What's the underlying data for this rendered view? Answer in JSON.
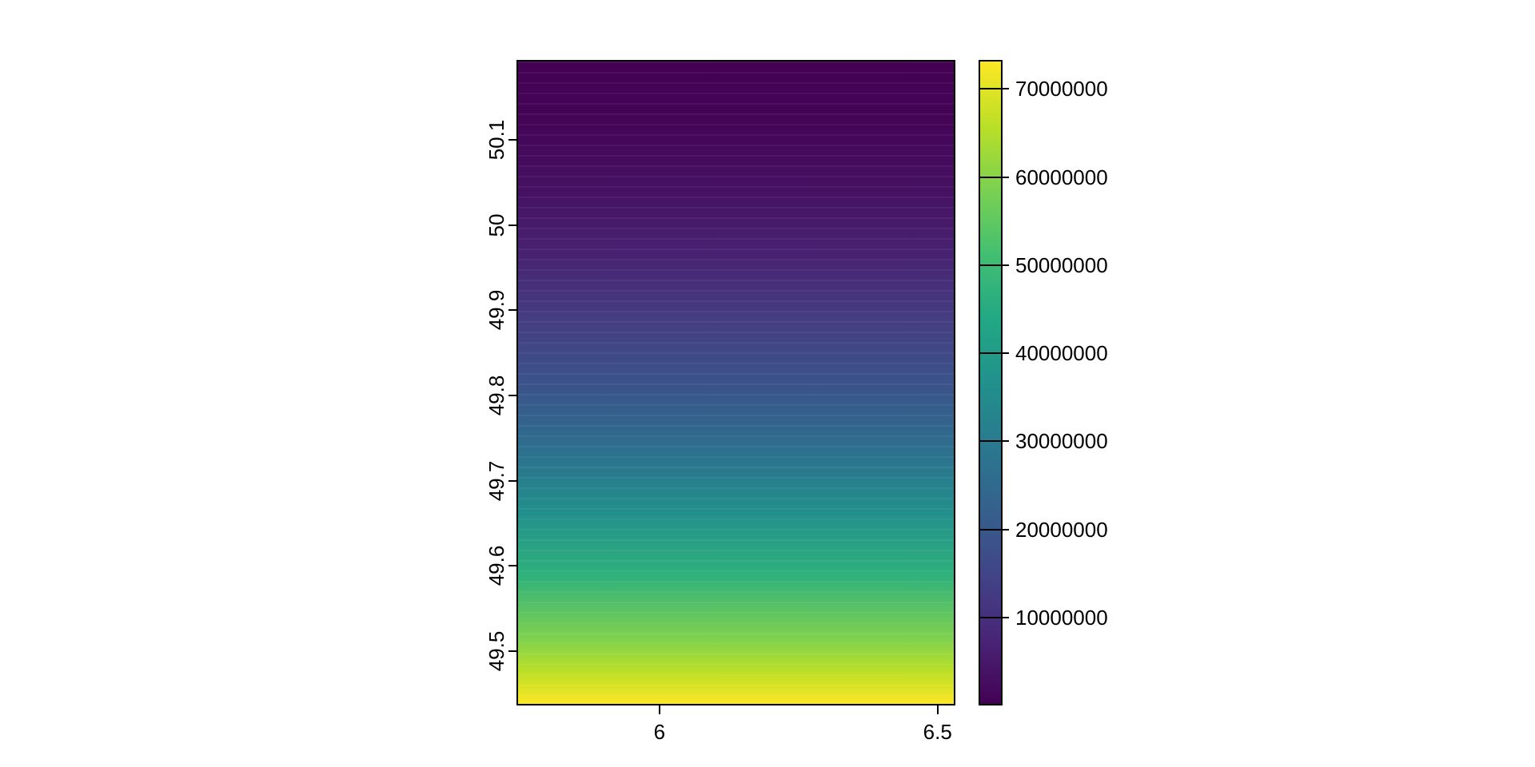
{
  "figure": {
    "background": "#FFFFFF",
    "text_color": "#000000",
    "border_color": "#000000"
  },
  "chart_data": {
    "type": "heatmap",
    "title": "",
    "xlabel": "",
    "ylabel": "",
    "grid": false,
    "boxed": true,
    "x_axis": {
      "range": [
        5.743,
        6.532
      ],
      "tick_values": [
        6,
        6.5
      ],
      "tick_labels": [
        "6",
        "6.5"
      ]
    },
    "y_axis": {
      "range": [
        49.436,
        50.194
      ],
      "tick_values": [
        50.1,
        50.0,
        49.9,
        49.8,
        49.7,
        49.6,
        49.5
      ],
      "tick_labels": [
        "50.1",
        "50",
        "49.9",
        "49.8",
        "49.7",
        "49.6",
        "49.5"
      ]
    },
    "legend": {
      "position": "right",
      "range": [
        0,
        73300000
      ],
      "tick_values": [
        70000000,
        60000000,
        50000000,
        40000000,
        30000000,
        20000000,
        10000000
      ],
      "tick_labels": [
        "70000000",
        "60000000",
        "50000000",
        "40000000",
        "30000000",
        "20000000",
        "10000000"
      ]
    },
    "colormap": {
      "name": "viridis",
      "stops": [
        "#440154",
        "#482576",
        "#414487",
        "#35608D",
        "#2A788E",
        "#21918C",
        "#22A884",
        "#43BF71",
        "#7AD151",
        "#BBDF27",
        "#FDE725"
      ]
    },
    "map_gradient": {
      "direction": "top-to-bottom",
      "note": "raster values rise superlinearly from ~0 at the top (lat 50.194) to ~73,300,000 at the bottom (lat 49.436); value ~ 73300000 * ((50.194 - lat)/0.758)^2",
      "stops": [
        {
          "pos": 0.0,
          "color": "#440154"
        },
        {
          "pos": 0.1,
          "color": "#440557"
        },
        {
          "pos": 0.2,
          "color": "#461162"
        },
        {
          "pos": 0.3,
          "color": "#482272"
        },
        {
          "pos": 0.4,
          "color": "#453D81"
        },
        {
          "pos": 0.5,
          "color": "#3B528A"
        },
        {
          "pos": 0.6,
          "color": "#2E6E8E"
        },
        {
          "pos": 0.7,
          "color": "#228F8C"
        },
        {
          "pos": 0.8,
          "color": "#2FB17C"
        },
        {
          "pos": 0.9,
          "color": "#80D24D"
        },
        {
          "pos": 0.95,
          "color": "#BCDF27"
        },
        {
          "pos": 1.0,
          "color": "#FDE725"
        }
      ]
    },
    "profile_by_latitude": {
      "lat": [
        50.194,
        50.1,
        50.0,
        49.9,
        49.8,
        49.7,
        49.6,
        49.5,
        49.436
      ],
      "value": [
        0,
        1130000,
        4800000,
        11000000,
        19800000,
        31100000,
        45200000,
        61400000,
        73300000
      ]
    }
  }
}
